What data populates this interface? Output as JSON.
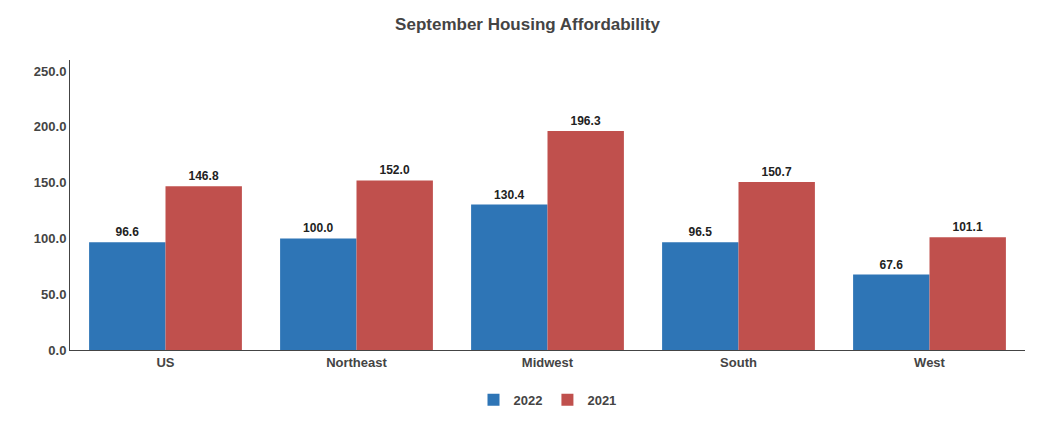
{
  "chart_data": {
    "type": "bar",
    "title": "September Housing Affordability",
    "categories": [
      "US",
      "Northeast",
      "Midwest",
      "South",
      "West"
    ],
    "series": [
      {
        "name": "2022",
        "color": "#2e75b6",
        "values": [
          96.6,
          100.0,
          130.4,
          96.5,
          67.6
        ],
        "value_labels": [
          "96.6",
          "100.0",
          "130.4",
          "96.5",
          "67.6"
        ]
      },
      {
        "name": "2021",
        "color": "#c0504d",
        "values": [
          146.8,
          152.0,
          196.3,
          150.7,
          101.1
        ],
        "value_labels": [
          "146.8",
          "152.0",
          "196.3",
          "150.7",
          "101.1"
        ]
      }
    ],
    "ylim": [
      0,
      260
    ],
    "yticks": [
      {
        "value": 0,
        "label": "0.0"
      },
      {
        "value": 50,
        "label": "50.0"
      },
      {
        "value": 100,
        "label": "100.0"
      },
      {
        "value": 150,
        "label": "150.0"
      },
      {
        "value": 200,
        "label": "200.0"
      },
      {
        "value": 250,
        "label": "250.0"
      }
    ],
    "grid": false,
    "legend": "bottom",
    "data_labels": true
  }
}
